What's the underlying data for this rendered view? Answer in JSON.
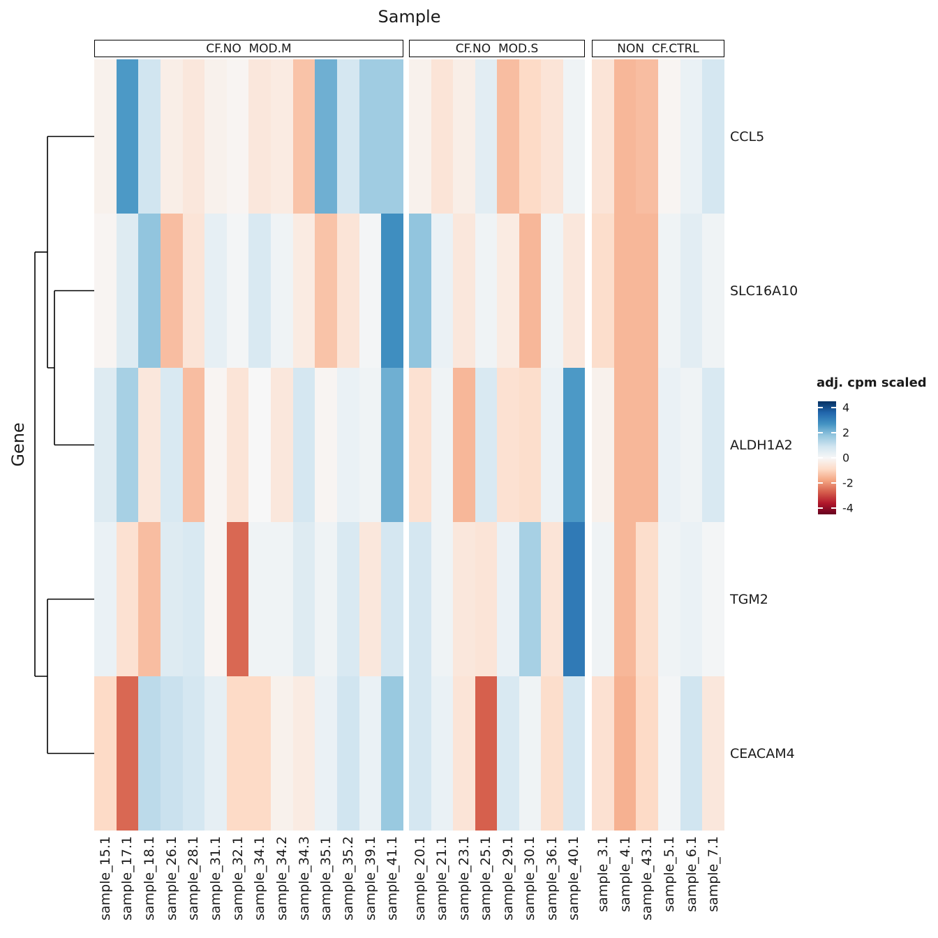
{
  "title": "Sample",
  "y_axis_label": "Gene",
  "legend": {
    "title": "adj. cpm scaled",
    "ticks": [
      4,
      2,
      0,
      -2,
      -4
    ],
    "range": [
      -4.5,
      4.5
    ]
  },
  "chart_data": {
    "type": "heatmap",
    "title": "Sample",
    "xlabel": "Sample",
    "ylabel": "Gene",
    "value_label": "adj. cpm scaled",
    "rows": [
      "CCL5",
      "SLC16A10",
      "ALDH1A2",
      "TGM2",
      "CEACAM4"
    ],
    "row_dendrogram": "((CCL5,(SLC16A10,ALDH1A2)),(TGM2,CEACAM4))",
    "column_groups": [
      {
        "label": "CF.NO  MOD.M",
        "columns": [
          "sample_15.1",
          "sample_17.1",
          "sample_18.1",
          "sample_26.1",
          "sample_28.1",
          "sample_31.1",
          "sample_32.1",
          "sample_34.1",
          "sample_34.2",
          "sample_34.3",
          "sample_35.1",
          "sample_35.2",
          "sample_39.1",
          "sample_41.1"
        ]
      },
      {
        "label": "CF.NO  MOD.S",
        "columns": [
          "sample_20.1",
          "sample_21.1",
          "sample_23.1",
          "sample_25.1",
          "sample_29.1",
          "sample_30.1",
          "sample_36.1",
          "sample_40.1"
        ]
      },
      {
        "label": "NON  CF.CTRL",
        "columns": [
          "sample_3.1",
          "sample_4.1",
          "sample_43.1",
          "sample_5.1",
          "sample_6.1",
          "sample_7.1"
        ]
      }
    ],
    "values": [
      [
        -0.2,
        2.6,
        0.9,
        -0.3,
        -0.5,
        -0.2,
        -0.1,
        -0.5,
        -0.4,
        -1.3,
        2.2,
        0.8,
        1.6,
        1.6,
        -0.2,
        -0.6,
        -0.3,
        0.5,
        -1.4,
        -0.9,
        -0.6,
        0.2,
        -0.6,
        -1.5,
        -1.4,
        -0.1,
        0.3,
        0.8
      ],
      [
        -0.1,
        0.6,
        1.8,
        -1.4,
        -0.6,
        0.4,
        0.1,
        0.7,
        0.2,
        -0.4,
        -1.3,
        -0.6,
        0.1,
        2.8,
        1.8,
        0.3,
        -0.5,
        0.2,
        -0.4,
        -1.5,
        0.2,
        -0.5,
        -0.8,
        -1.5,
        -1.5,
        0.2,
        0.5,
        0.2
      ],
      [
        0.6,
        1.5,
        -0.5,
        0.7,
        -1.4,
        -0.1,
        -0.6,
        0.0,
        -0.5,
        0.8,
        -0.1,
        0.3,
        0.2,
        2.2,
        -0.7,
        0.2,
        -1.5,
        0.7,
        -0.7,
        -0.8,
        0.3,
        2.6,
        -0.2,
        -1.5,
        -1.5,
        0.3,
        0.2,
        0.7
      ],
      [
        0.3,
        -0.7,
        -1.4,
        0.6,
        0.7,
        -0.1,
        -2.6,
        0.2,
        0.2,
        0.6,
        0.2,
        0.7,
        -0.5,
        0.8,
        0.8,
        0.2,
        -0.5,
        -0.6,
        0.3,
        1.5,
        -0.6,
        3.2,
        0.2,
        -1.5,
        -0.8,
        0.2,
        0.3,
        0.1
      ],
      [
        -0.9,
        -2.6,
        1.2,
        1.0,
        0.8,
        0.4,
        -0.9,
        -0.9,
        -0.2,
        -0.4,
        0.3,
        0.9,
        0.3,
        1.7,
        0.8,
        0.3,
        -0.6,
        -2.7,
        0.7,
        0.2,
        -0.8,
        0.8,
        -0.7,
        -1.6,
        -0.9,
        0.1,
        0.9,
        -0.5
      ]
    ],
    "color_scale": {
      "name": "RdBu",
      "domain": [
        -4.5,
        4.5
      ],
      "colors_low_to_high": [
        "#67001F",
        "#B2182B",
        "#D6604D",
        "#F4A582",
        "#FDDBC7",
        "#F7F7F7",
        "#D1E5F0",
        "#92C5DE",
        "#4393C3",
        "#2166AC",
        "#053061"
      ]
    },
    "grid": false,
    "legend_position": "right"
  }
}
